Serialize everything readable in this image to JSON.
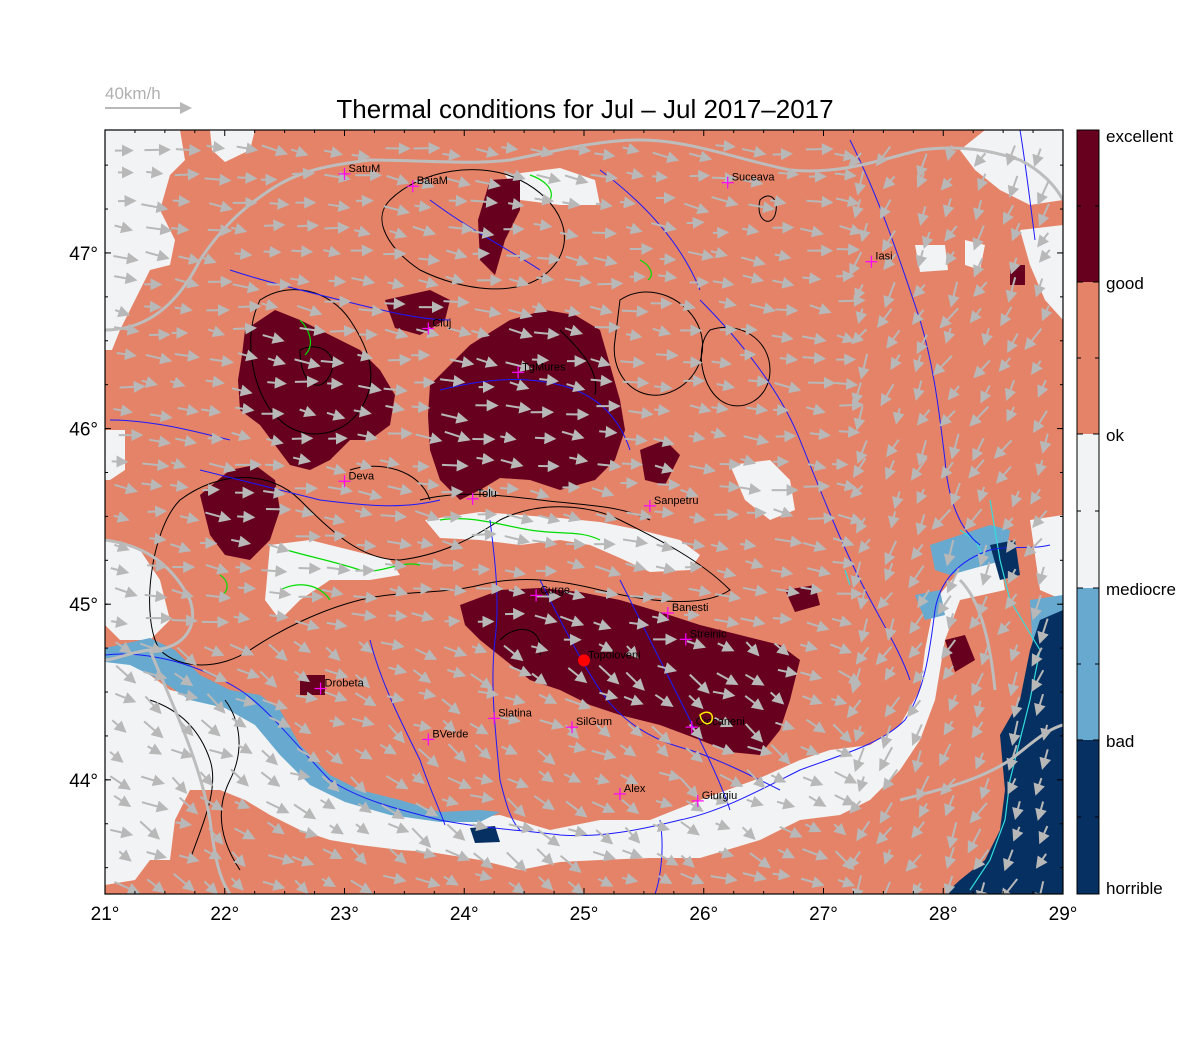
{
  "map": {
    "title": "Thermal conditions for Jul – Jul  2017–2017",
    "wind_scale_label": "40km/h",
    "lon_range": [
      21,
      29
    ],
    "lat_range": [
      43.35,
      47.7
    ],
    "lon_ticks": [
      "21°",
      "22°",
      "23°",
      "24°",
      "25°",
      "26°",
      "27°",
      "28°",
      "29°"
    ],
    "lat_ticks": [
      "44°",
      "45°",
      "46°",
      "47°"
    ],
    "colors": {
      "excellent": "#67001f",
      "good": "#e58368",
      "ok": "#f2f3f4",
      "bad": "#67a9cf",
      "horrible": "#053061",
      "city_marker": "#ff00ff",
      "rivers": "#1a1aff",
      "borders": "#bdbdbd",
      "wind_arrows": "#b8b8b8",
      "selected_site": "#ff0000"
    },
    "selected_site": {
      "name": "Topoloveni",
      "lon": 25.0,
      "lat": 44.68
    }
  },
  "legend": {
    "levels": [
      "excellent",
      "good",
      "ok",
      "mediocre",
      "bad",
      "horrible"
    ]
  },
  "cities": [
    {
      "name": "SatuM",
      "lon": 23.0,
      "lat": 47.45
    },
    {
      "name": "BaiaM",
      "lon": 23.57,
      "lat": 47.38
    },
    {
      "name": "Suceava",
      "lon": 26.2,
      "lat": 47.4
    },
    {
      "name": "Iasi",
      "lon": 27.4,
      "lat": 46.95
    },
    {
      "name": "Cluj",
      "lon": 23.7,
      "lat": 46.57
    },
    {
      "name": "TgMures",
      "lon": 24.45,
      "lat": 46.32
    },
    {
      "name": "Deva",
      "lon": 23.0,
      "lat": 45.7
    },
    {
      "name": "Tolu",
      "lon": 24.07,
      "lat": 45.6
    },
    {
      "name": "Sanpetru",
      "lon": 25.55,
      "lat": 45.56
    },
    {
      "name": "Curge",
      "lon": 24.6,
      "lat": 45.05
    },
    {
      "name": "Banesti",
      "lon": 25.7,
      "lat": 44.95
    },
    {
      "name": "Streinic",
      "lon": 25.85,
      "lat": 44.8
    },
    {
      "name": "Topoloveni",
      "lon": 25.0,
      "lat": 44.68
    },
    {
      "name": "Drobeta",
      "lon": 22.8,
      "lat": 44.52
    },
    {
      "name": "Slatina",
      "lon": 24.25,
      "lat": 44.35
    },
    {
      "name": "SilGum",
      "lon": 24.9,
      "lat": 44.3
    },
    {
      "name": "Ciocaneni",
      "lon": 25.9,
      "lat": 44.3
    },
    {
      "name": "BVerde",
      "lon": 23.7,
      "lat": 44.23
    },
    {
      "name": "Alex",
      "lon": 25.3,
      "lat": 43.92
    },
    {
      "name": "Giurgiu",
      "lon": 25.95,
      "lat": 43.88
    }
  ]
}
